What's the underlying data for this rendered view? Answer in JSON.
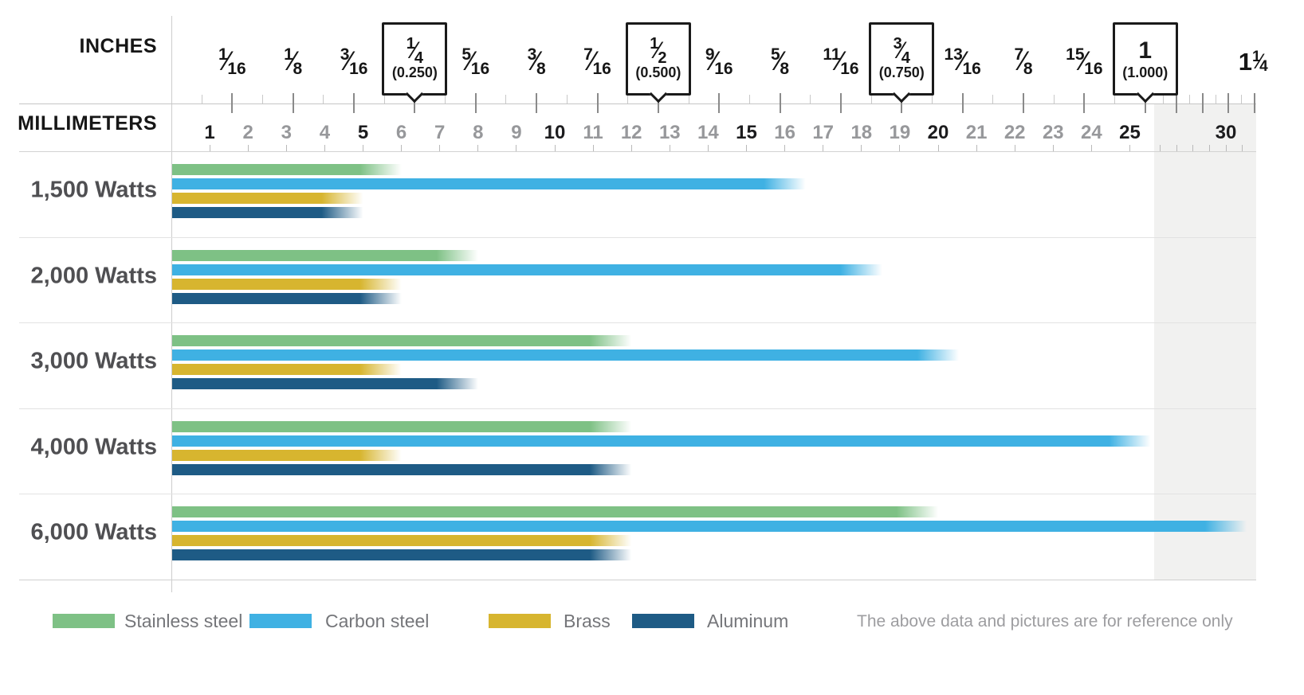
{
  "header": {
    "inches_label": "INCHES",
    "millimeters_label": "MILLIMETERS"
  },
  "chart_data": {
    "type": "bar",
    "orientation": "horizontal",
    "unit": "mm",
    "categories": [
      "1,500 Watts",
      "2,000 Watts",
      "3,000 Watts",
      "4,000 Watts",
      "6,000 Watts"
    ],
    "series": [
      {
        "name": "Stainless steel",
        "color": "#7ec185",
        "values": [
          6,
          8,
          12,
          12,
          20
        ]
      },
      {
        "name": "Carbon steel",
        "color": "#3fb1e3",
        "values": [
          16,
          18,
          20,
          25,
          30
        ]
      },
      {
        "name": "Brass",
        "color": "#d7b52f",
        "values": [
          5,
          6,
          6,
          6,
          12
        ]
      },
      {
        "name": "Aluminum",
        "color": "#1e5b85",
        "values": [
          5,
          6,
          8,
          12,
          12
        ]
      }
    ],
    "x_axis": {
      "mm_labeled_ticks": [
        1,
        2,
        3,
        4,
        5,
        6,
        7,
        8,
        9,
        10,
        11,
        12,
        13,
        14,
        15,
        16,
        17,
        18,
        19,
        20,
        21,
        22,
        23,
        24,
        25,
        30
      ],
      "mm_bold_ticks": [
        1,
        5,
        10,
        15,
        20,
        25,
        30
      ],
      "mm_minor_ticks_to": 31,
      "main_range_mm": [
        0,
        25
      ],
      "compressed_range_mm": [
        25,
        31.75
      ],
      "highlight_zone_color": "#f1f1f0",
      "grid": "row-separators-only"
    }
  },
  "ruler": {
    "inch_fraction_labels": [
      {
        "num": "1",
        "den": "16",
        "sixteenths": 1
      },
      {
        "num": "1",
        "den": "8",
        "sixteenths": 2
      },
      {
        "num": "3",
        "den": "16",
        "sixteenths": 3
      },
      {
        "num": "5",
        "den": "16",
        "sixteenths": 5
      },
      {
        "num": "3",
        "den": "8",
        "sixteenths": 6
      },
      {
        "num": "7",
        "den": "16",
        "sixteenths": 7
      },
      {
        "num": "9",
        "den": "16",
        "sixteenths": 9
      },
      {
        "num": "5",
        "den": "8",
        "sixteenths": 10
      },
      {
        "num": "11",
        "den": "16",
        "sixteenths": 11
      },
      {
        "num": "13",
        "den": "16",
        "sixteenths": 13
      },
      {
        "num": "7",
        "den": "8",
        "sixteenths": 14
      },
      {
        "num": "15",
        "den": "16",
        "sixteenths": 15
      }
    ],
    "inch_boxed_labels": [
      {
        "num": "1",
        "den": "4",
        "decimal": "(0.250)",
        "sixteenths": 4
      },
      {
        "num": "1",
        "den": "2",
        "decimal": "(0.500)",
        "sixteenths": 8
      },
      {
        "num": "3",
        "den": "4",
        "decimal": "(0.750)",
        "sixteenths": 12
      },
      {
        "whole": "1",
        "decimal": "(1.000)",
        "sixteenths": 16
      }
    ],
    "inch_end_label": {
      "whole": "1",
      "num": "1",
      "den": "4",
      "sixteenths": 20
    }
  },
  "legend": {
    "items": [
      {
        "label": "Stainless steel",
        "color": "#7ec185"
      },
      {
        "label": "Carbon steel",
        "color": "#3fb1e3"
      },
      {
        "label": "Brass",
        "color": "#d7b52f"
      },
      {
        "label": "Aluminum",
        "color": "#1e5b85"
      }
    ],
    "note": "The above data and pictures are for reference only"
  }
}
